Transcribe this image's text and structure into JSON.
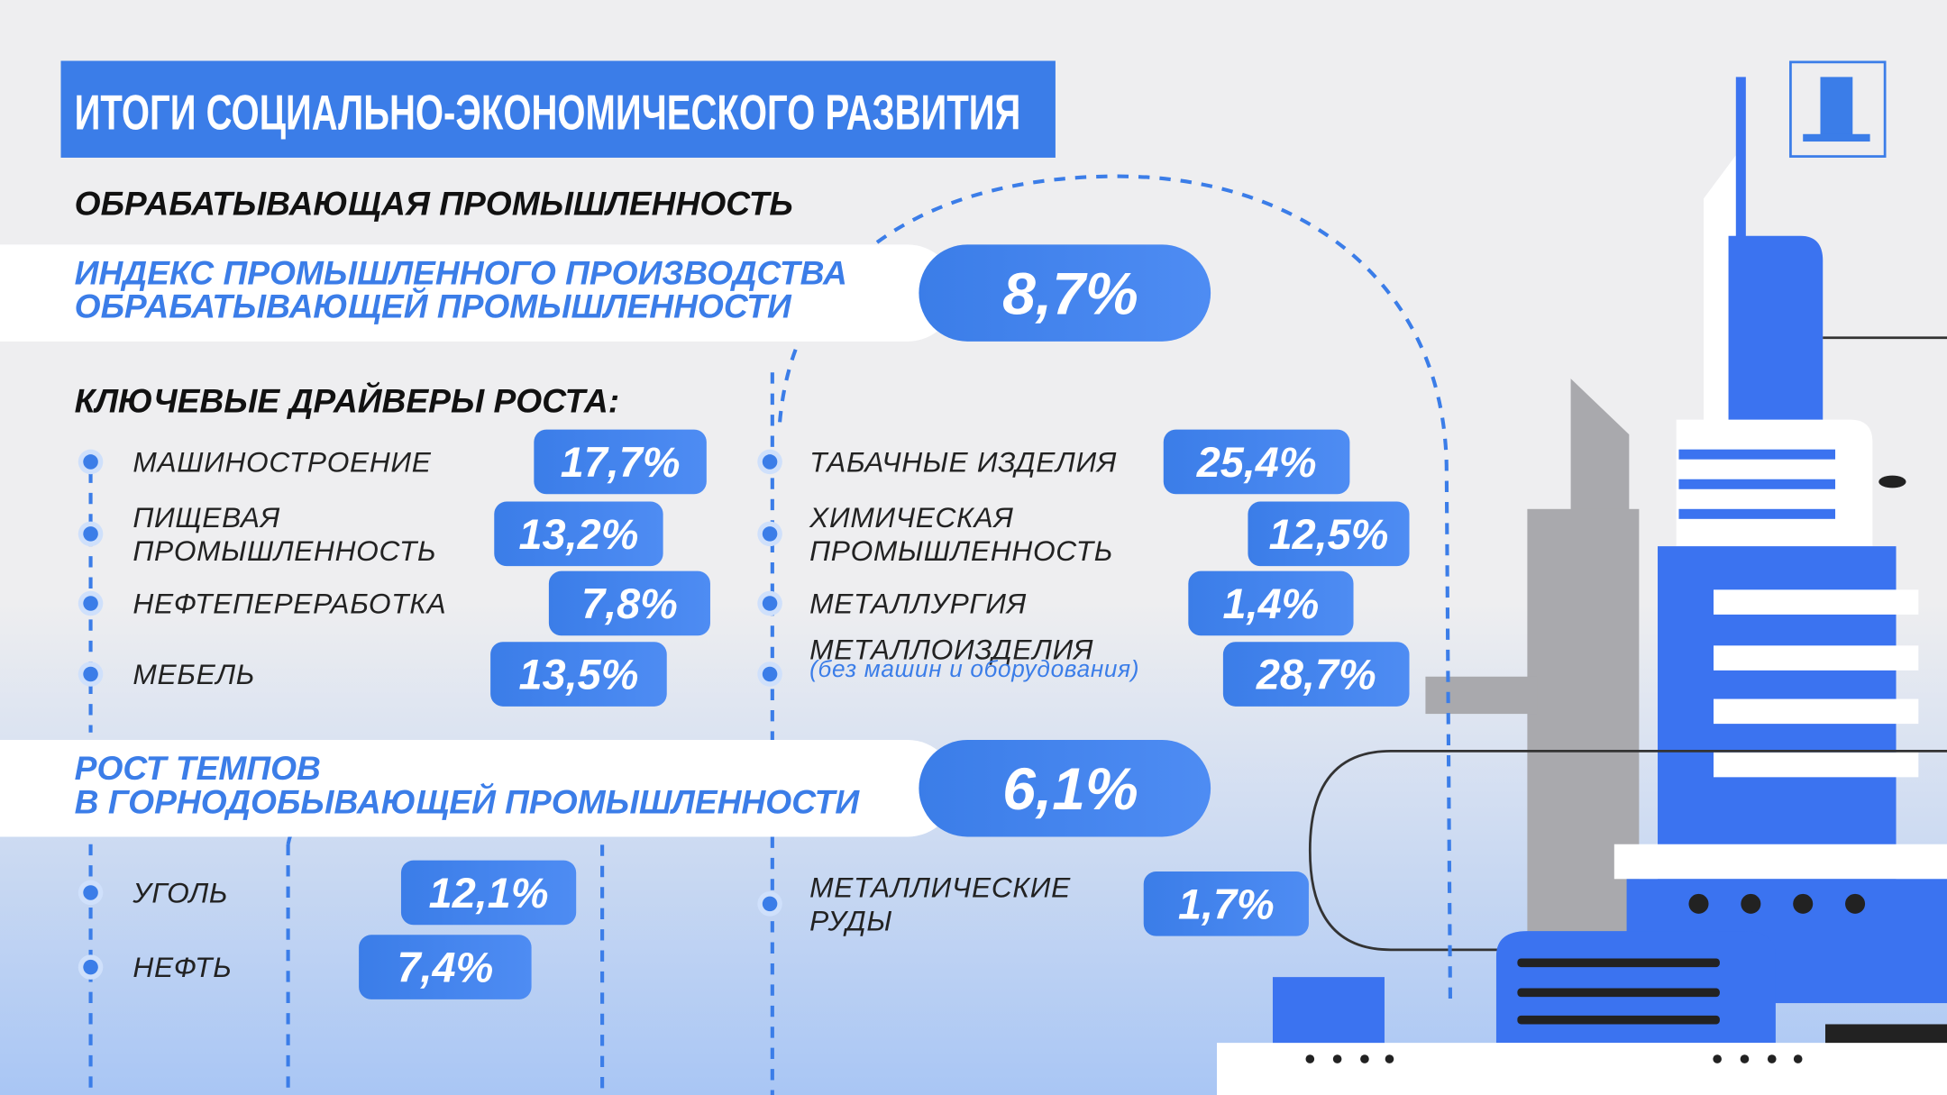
{
  "header": {
    "title": "ИТОГИ СОЦИАЛЬНО-ЭКОНОМИЧЕСКОГО РАЗВИТИЯ",
    "subtitle": "ОБРАБАТЫВАЮЩАЯ ПРОМЫШЛЕННОСТЬ"
  },
  "manufacturing_index": {
    "label_lines": [
      "ИНДЕКС ПРОМЫШЛЕННОГО ПРОИЗВОДСТВА",
      "ОБРАБАТЫВАЮЩЕЙ ПРОМЫШЛЕННОСТИ"
    ],
    "value": "8,7%"
  },
  "drivers": {
    "title": "КЛЮЧЕВЫЕ ДРАЙВЕРЫ РОСТА:",
    "left": [
      {
        "label_lines": [
          "МАШИНОСТРОЕНИЕ"
        ],
        "value": "17,7%"
      },
      {
        "label_lines": [
          "ПИЩЕВАЯ",
          "ПРОМЫШЛЕННОСТЬ"
        ],
        "value": "13,2%"
      },
      {
        "label_lines": [
          "НЕФТЕПЕРЕРАБОТКА"
        ],
        "value": "7,8%"
      },
      {
        "label_lines": [
          "МЕБЕЛЬ"
        ],
        "value": "13,5%"
      }
    ],
    "right": [
      {
        "label_lines": [
          "ТАБАЧНЫЕ ИЗДЕЛИЯ"
        ],
        "value": "25,4%"
      },
      {
        "label_lines": [
          "ХИМИЧЕСКАЯ",
          "ПРОМЫШЛЕННОСТЬ"
        ],
        "value": "12,5%"
      },
      {
        "label_lines": [
          "МЕТАЛЛУРГИЯ"
        ],
        "value": "1,4%"
      },
      {
        "label_lines": [
          "МЕТАЛЛОИЗДЕЛИЯ"
        ],
        "note": "(без машин и оборудования)",
        "value": "28,7%"
      }
    ]
  },
  "mining": {
    "label_lines": [
      "РОСТ ТЕМПОВ",
      "В ГОРНОДОБЫВАЮЩЕЙ ПРОМЫШЛЕННОСТИ"
    ],
    "value": "6,1%",
    "left": [
      {
        "label_lines": [
          "УГОЛЬ"
        ],
        "value": "12,1%"
      },
      {
        "label_lines": [
          "НЕФТЬ"
        ],
        "value": "7,4%"
      }
    ],
    "right": [
      {
        "label_lines": [
          "МЕТАЛЛИЧЕСКИЕ",
          "РУДЫ"
        ],
        "value": "1,7%"
      }
    ]
  }
}
